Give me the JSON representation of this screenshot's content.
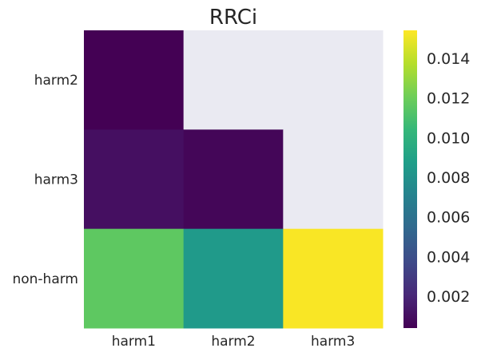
{
  "chart_data": {
    "type": "heatmap",
    "title": "RRCi",
    "x_categories": [
      "harm1",
      "harm2",
      "harm3"
    ],
    "y_categories": [
      "harm2",
      "harm3",
      "non-harm"
    ],
    "values": [
      [
        0.0004,
        null,
        null
      ],
      [
        0.001,
        0.0006,
        null
      ],
      [
        0.0116,
        0.0085,
        0.0153
      ]
    ],
    "missing_color": "#eaeaf2",
    "colormap": "viridis",
    "colorbar": {
      "range": [
        0.0004,
        0.0154
      ],
      "ticks": [
        0.002,
        0.004,
        0.006,
        0.008,
        0.01,
        0.012,
        0.014
      ],
      "tick_labels": [
        "0.002",
        "0.004",
        "0.006",
        "0.008",
        "0.010",
        "0.012",
        "0.014"
      ]
    }
  }
}
